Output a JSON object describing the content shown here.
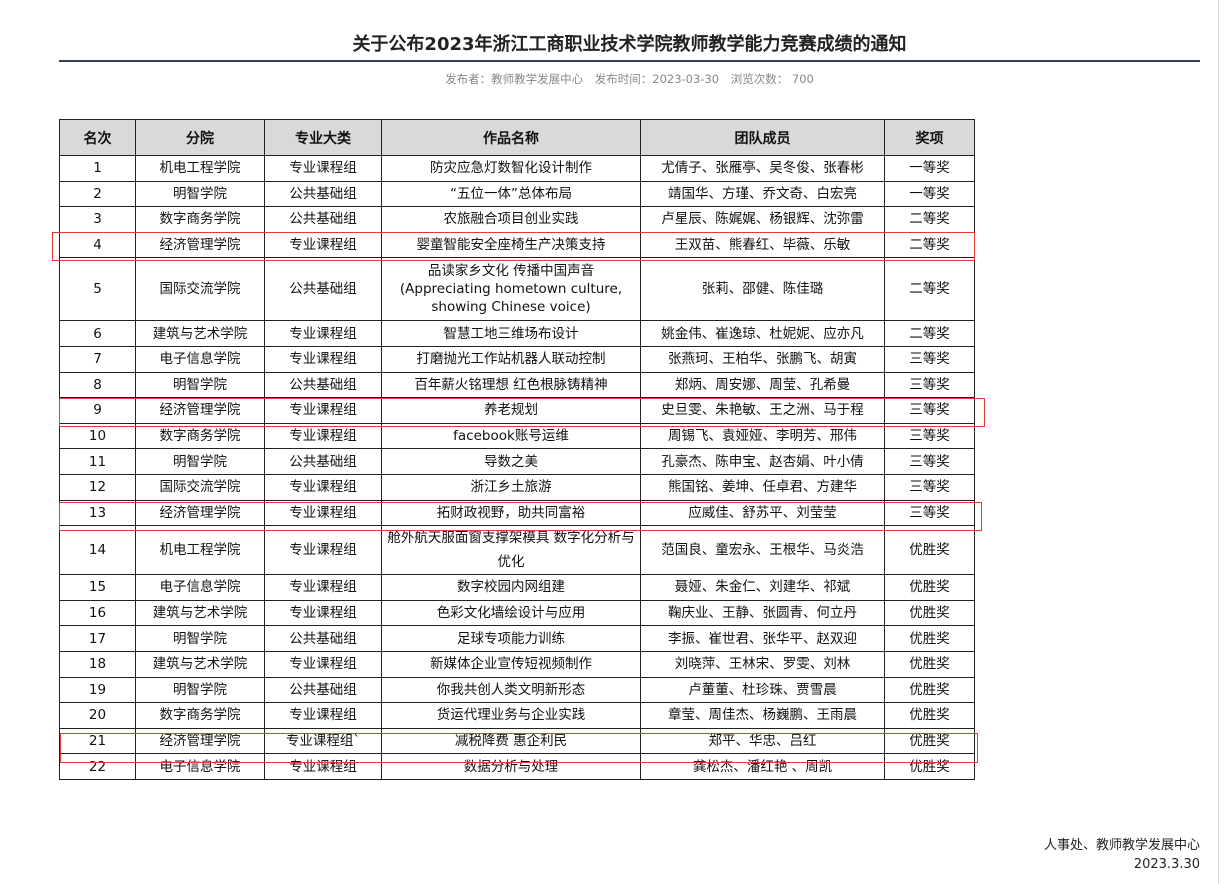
{
  "title": "关于公布2023年浙江工商职业技术学院教师教学能力竞赛成绩的通知",
  "meta": {
    "publisher": "发布者：教师教学发展中心",
    "publish_time": "发布时间：2023-03-30",
    "views": "浏览次数：  700"
  },
  "table": {
    "headers": [
      "名次",
      "分院",
      "专业大类",
      "作品名称",
      "团队成员",
      "奖项"
    ],
    "rows": [
      [
        "1",
        "机电工程学院",
        "专业课程组",
        "防灾应急灯数智化设计制作",
        "尤倩子、张雁亭、吴冬俊、张春彬",
        "一等奖"
      ],
      [
        "2",
        "明智学院",
        "公共基础组",
        "“五位一体”总体布局",
        "靖国华、方瑾、乔文奇、白宏亮",
        "一等奖"
      ],
      [
        "3",
        "数字商务学院",
        "公共基础组",
        "农旅融合项目创业实践",
        "卢星辰、陈娓娓、杨银辉、沈弥雷",
        "二等奖"
      ],
      [
        "4",
        "经济管理学院",
        "专业课程组",
        "婴童智能安全座椅生产决策支持",
        "王双苗、熊春红、毕薇、乐敏",
        "二等奖"
      ],
      [
        "5",
        "国际交流学院",
        "公共基础组",
        "品读家乡文化 传播中国声音 (Appreciating hometown culture, showing Chinese voice)",
        "张莉、邵健、陈佳璐",
        "二等奖"
      ],
      [
        "6",
        "建筑与艺术学院",
        "专业课程组",
        "智慧工地三维场布设计",
        "姚金伟、崔逸琼、杜妮妮、应亦凡",
        "二等奖"
      ],
      [
        "7",
        "电子信息学院",
        "专业课程组",
        "打磨抛光工作站机器人联动控制",
        "张燕珂、王柏华、张鹏飞、胡寅",
        "三等奖"
      ],
      [
        "8",
        "明智学院",
        "公共基础组",
        "百年薪火铭理想 红色根脉铸精神",
        "郑炳、周安娜、周莹、孔希曼",
        "三等奖"
      ],
      [
        "9",
        "经济管理学院",
        "专业课程组",
        "养老规划",
        "史旦雯、朱艳敏、王之洲、马于程",
        "三等奖"
      ],
      [
        "10",
        "数字商务学院",
        "专业课程组",
        "facebook账号运维",
        "周锡飞、袁娅娅、李明芳、邢伟",
        "三等奖"
      ],
      [
        "11",
        "明智学院",
        "公共基础组",
        "导数之美",
        "孔豪杰、陈申宝、赵杏娟、叶小倩",
        "三等奖"
      ],
      [
        "12",
        "国际交流学院",
        "专业课程组",
        "浙江乡土旅游",
        "熊国铭、姜坤、任卓君、方建华",
        "三等奖"
      ],
      [
        "13",
        "经济管理学院",
        "专业课程组",
        "拓财政视野，助共同富裕",
        "应威佳、舒苏平、刘莹莹",
        "三等奖"
      ],
      [
        "14",
        "机电工程学院",
        "专业课程组",
        "舱外航天服面窗支撑架模具 数字化分析与优化",
        "范国良、童宏永、王根华、马炎浩",
        "优胜奖"
      ],
      [
        "15",
        "电子信息学院",
        "专业课程组",
        "数字校园内网组建",
        "聂娅、朱金仁、刘建华、祁斌",
        "优胜奖"
      ],
      [
        "16",
        "建筑与艺术学院",
        "专业课程组",
        "色彩文化墙绘设计与应用",
        "鞠庆业、王静、张圆青、何立丹",
        "优胜奖"
      ],
      [
        "17",
        "明智学院",
        "公共基础组",
        "足球专项能力训练",
        "李振、崔世君、张华平、赵双迎",
        "优胜奖"
      ],
      [
        "18",
        "建筑与艺术学院",
        "专业课程组",
        "新媒体企业宣传短视频制作",
        "刘晓萍、王林宋、罗雯、刘林",
        "优胜奖"
      ],
      [
        "19",
        "明智学院",
        "公共基础组",
        "你我共创人类文明新形态",
        "卢董董、杜珍珠、贾雪晨",
        "优胜奖"
      ],
      [
        "20",
        "数字商务学院",
        "专业课程组",
        "货运代理业务与企业实践",
        "章莹、周佳杰、杨巍鹏、王雨晨",
        "优胜奖"
      ],
      [
        "21",
        "经济管理学院",
        "专业课程组`",
        "减税降费 惠企利民",
        "郑平、华忠、吕红",
        "优胜奖"
      ],
      [
        "22",
        "电子信息学院",
        "专业课程组",
        "数据分析与处理",
        "龚松杰、潘红艳 、周凯",
        "优胜奖"
      ]
    ]
  },
  "highlight_color": "#e53935",
  "footer": {
    "org": "人事处、教师教学发展中心",
    "date": "2023.3.30"
  }
}
